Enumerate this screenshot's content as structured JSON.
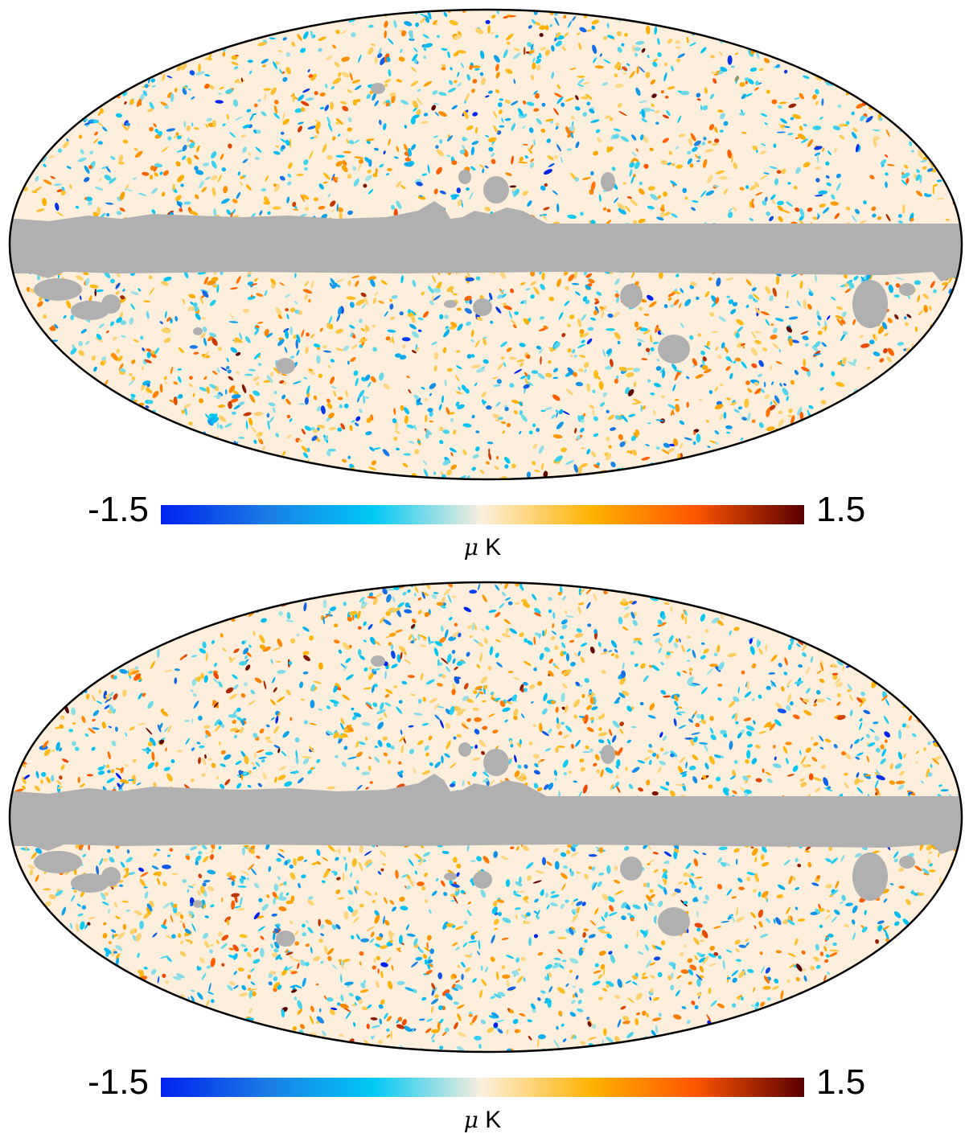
{
  "panels": [
    {
      "name": "top",
      "colorbar": {
        "min_label": "-1.5",
        "max_label": "1.5",
        "unit_mu": "μ",
        "unit_k": "K",
        "min": -1.5,
        "max": 1.5
      },
      "seed": 17
    },
    {
      "name": "bottom",
      "colorbar": {
        "min_label": "-1.5",
        "max_label": "1.5",
        "unit_mu": "μ",
        "unit_k": "K",
        "min": -1.5,
        "max": 1.5
      },
      "seed": 91
    }
  ],
  "colors": {
    "mask": "#b0b0b0",
    "outline": "#000000",
    "colormap": [
      "#0022ee",
      "#1a7fe6",
      "#00c8f5",
      "#fdefdc",
      "#ffb300",
      "#ff5500",
      "#5a0000"
    ]
  },
  "projection": "mollweide",
  "mask": "galactic-plane-band-with-point-sources"
}
